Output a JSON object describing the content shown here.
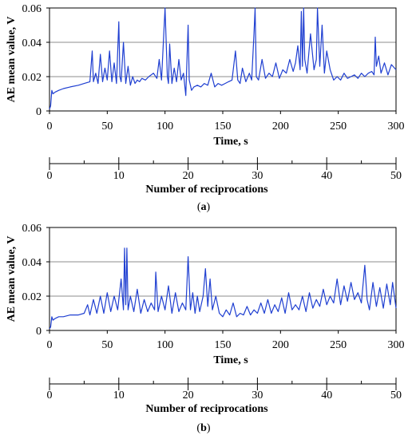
{
  "chart_data": [
    {
      "type": "line",
      "panel": "(a)",
      "panel_letter": "a",
      "xlabel": "Time, s",
      "ylabel": "AE mean value, V",
      "xlim": [
        0,
        300
      ],
      "ylim": [
        0,
        0.06
      ],
      "x_ticks": [
        "0",
        "50",
        "100",
        "150",
        "200",
        "250",
        "300"
      ],
      "y_ticks": [
        "0",
        "0.02",
        "0.04",
        "0.06"
      ],
      "grid": "horizontal",
      "line_color": "#1f3fd1",
      "secondary_axis": {
        "label": "Number of reciprocations",
        "range": [
          0,
          50
        ],
        "ticks": [
          "0",
          "10",
          "20",
          "30",
          "40",
          "50"
        ]
      },
      "series": [
        {
          "x": [
            0,
            1,
            2,
            3,
            5,
            8,
            12,
            18,
            25,
            30,
            35,
            37,
            38,
            40,
            42,
            44,
            46,
            48,
            50,
            52,
            54,
            56,
            58,
            60,
            61,
            62,
            64,
            66,
            68,
            70,
            72,
            74,
            76,
            78,
            80,
            83,
            86,
            90,
            93,
            95,
            97,
            100,
            102,
            103,
            104,
            106,
            108,
            110,
            112,
            114,
            116,
            118,
            120,
            121,
            123,
            125,
            128,
            131,
            134,
            137,
            140,
            143,
            146,
            149,
            152,
            155,
            158,
            161,
            163,
            165,
            167,
            170,
            173,
            175,
            177,
            178,
            179,
            181,
            184,
            187,
            190,
            193,
            196,
            199,
            202,
            205,
            208,
            211,
            213,
            215,
            217,
            218,
            219,
            220,
            221,
            223,
            226,
            229,
            231,
            232,
            234,
            236,
            238,
            240,
            243,
            246,
            249,
            252,
            255,
            258,
            261,
            264,
            267,
            270,
            273,
            276,
            279,
            281,
            282,
            283,
            285,
            287,
            290,
            293,
            296,
            300
          ],
          "y": [
            0.001,
            0.003,
            0.012,
            0.01,
            0.011,
            0.012,
            0.013,
            0.014,
            0.015,
            0.016,
            0.017,
            0.035,
            0.017,
            0.022,
            0.016,
            0.033,
            0.017,
            0.025,
            0.018,
            0.035,
            0.017,
            0.028,
            0.016,
            0.052,
            0.02,
            0.017,
            0.04,
            0.016,
            0.026,
            0.015,
            0.02,
            0.016,
            0.018,
            0.017,
            0.019,
            0.018,
            0.02,
            0.022,
            0.019,
            0.03,
            0.018,
            0.06,
            0.02,
            0.016,
            0.039,
            0.016,
            0.025,
            0.017,
            0.03,
            0.018,
            0.022,
            0.009,
            0.05,
            0.018,
            0.012,
            0.014,
            0.015,
            0.014,
            0.016,
            0.015,
            0.022,
            0.014,
            0.016,
            0.015,
            0.016,
            0.017,
            0.018,
            0.035,
            0.018,
            0.016,
            0.025,
            0.017,
            0.022,
            0.018,
            0.045,
            0.06,
            0.02,
            0.018,
            0.03,
            0.019,
            0.022,
            0.02,
            0.028,
            0.019,
            0.024,
            0.022,
            0.03,
            0.023,
            0.028,
            0.038,
            0.024,
            0.058,
            0.026,
            0.06,
            0.03,
            0.022,
            0.045,
            0.024,
            0.03,
            0.06,
            0.026,
            0.05,
            0.022,
            0.035,
            0.024,
            0.018,
            0.02,
            0.018,
            0.022,
            0.019,
            0.02,
            0.021,
            0.019,
            0.022,
            0.02,
            0.022,
            0.023,
            0.021,
            0.043,
            0.026,
            0.032,
            0.022,
            0.028,
            0.021,
            0.027,
            0.024
          ]
        }
      ]
    },
    {
      "type": "line",
      "panel": "(b)",
      "panel_letter": "b",
      "xlabel": "Time, s",
      "ylabel": "AE mean value, V",
      "xlim": [
        0,
        300
      ],
      "ylim": [
        0,
        0.06
      ],
      "x_ticks": [
        "0",
        "50",
        "100",
        "150",
        "200",
        "250",
        "300"
      ],
      "y_ticks": [
        "0",
        "0.02",
        "0.04",
        "0.06"
      ],
      "grid": "horizontal",
      "line_color": "#1f3fd1",
      "secondary_axis": {
        "label": "Number of reciprocations",
        "range": [
          0,
          50
        ],
        "ticks": [
          "0",
          "10",
          "20",
          "30",
          "40",
          "50"
        ]
      },
      "series": [
        {
          "x": [
            0,
            1,
            2,
            3,
            5,
            8,
            12,
            18,
            25,
            30,
            33,
            35,
            38,
            41,
            44,
            47,
            50,
            53,
            56,
            59,
            62,
            64,
            65,
            66,
            67,
            68,
            70,
            73,
            76,
            79,
            82,
            85,
            88,
            91,
            92,
            94,
            97,
            100,
            103,
            106,
            109,
            112,
            115,
            118,
            120,
            122,
            124,
            126,
            128,
            130,
            133,
            135,
            137,
            139,
            141,
            144,
            147,
            150,
            153,
            156,
            159,
            162,
            165,
            168,
            171,
            174,
            177,
            180,
            183,
            186,
            189,
            192,
            195,
            198,
            201,
            204,
            207,
            210,
            213,
            216,
            219,
            222,
            225,
            228,
            231,
            234,
            237,
            240,
            243,
            246,
            249,
            252,
            255,
            258,
            261,
            264,
            267,
            270,
            273,
            275,
            277,
            280,
            283,
            286,
            289,
            292,
            295,
            297,
            300
          ],
          "y": [
            0.001,
            0.002,
            0.008,
            0.006,
            0.007,
            0.008,
            0.008,
            0.009,
            0.009,
            0.01,
            0.015,
            0.009,
            0.018,
            0.01,
            0.02,
            0.01,
            0.022,
            0.011,
            0.02,
            0.012,
            0.03,
            0.012,
            0.048,
            0.015,
            0.048,
            0.012,
            0.02,
            0.011,
            0.024,
            0.01,
            0.018,
            0.011,
            0.016,
            0.012,
            0.034,
            0.011,
            0.02,
            0.012,
            0.026,
            0.01,
            0.022,
            0.011,
            0.016,
            0.012,
            0.043,
            0.012,
            0.022,
            0.01,
            0.02,
            0.011,
            0.02,
            0.036,
            0.014,
            0.03,
            0.012,
            0.02,
            0.01,
            0.008,
            0.012,
            0.009,
            0.016,
            0.008,
            0.01,
            0.009,
            0.014,
            0.009,
            0.012,
            0.01,
            0.016,
            0.01,
            0.018,
            0.01,
            0.015,
            0.011,
            0.019,
            0.01,
            0.022,
            0.012,
            0.015,
            0.012,
            0.02,
            0.011,
            0.022,
            0.013,
            0.018,
            0.014,
            0.024,
            0.015,
            0.02,
            0.016,
            0.03,
            0.015,
            0.026,
            0.017,
            0.028,
            0.018,
            0.022,
            0.016,
            0.038,
            0.018,
            0.012,
            0.028,
            0.014,
            0.025,
            0.013,
            0.027,
            0.015,
            0.028,
            0.013
          ]
        }
      ]
    }
  ]
}
